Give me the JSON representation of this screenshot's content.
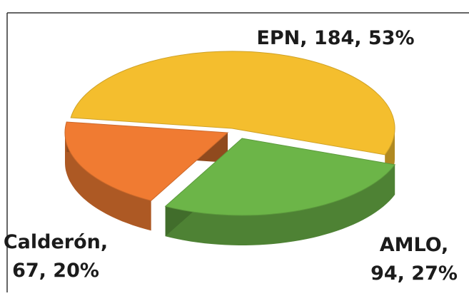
{
  "chart_data": {
    "type": "pie3d",
    "values": [
      184,
      94,
      67
    ],
    "value_labels": [
      [
        "EPN, 184, 53%"
      ],
      [
        "AMLO,",
        "94, 27%"
      ],
      [
        "Calderón,",
        "67, 20%"
      ]
    ],
    "colors": [
      "#f4be2e",
      "#6cb548",
      "#f07b32"
    ]
  }
}
